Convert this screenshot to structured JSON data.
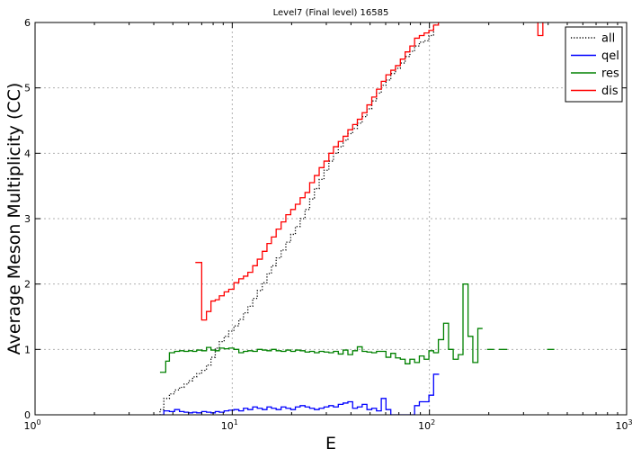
{
  "chart_data": {
    "type": "line",
    "title": "Level7 (Final level) 16585",
    "xlabel": "E",
    "ylabel": "Average Meson Multiplicity (CC)",
    "xscale": "log",
    "xlim": [
      1,
      1000
    ],
    "ylim": [
      0,
      6
    ],
    "xticks": [
      {
        "value": 1,
        "label": "10",
        "exp": "0"
      },
      {
        "value": 10,
        "label": "10",
        "exp": "1"
      },
      {
        "value": 100,
        "label": "10",
        "exp": "2"
      },
      {
        "value": 1000,
        "label": "10",
        "exp": "3"
      }
    ],
    "yticks": [
      {
        "value": 0,
        "label": "0"
      },
      {
        "value": 1,
        "label": "1"
      },
      {
        "value": 2,
        "label": "2"
      },
      {
        "value": 3,
        "label": "3"
      },
      {
        "value": 4,
        "label": "4"
      },
      {
        "value": 5,
        "label": "5"
      },
      {
        "value": 6,
        "label": "6"
      }
    ],
    "grid": true,
    "legend_position": "top-right",
    "series": [
      {
        "name": "all",
        "color": "#000000",
        "style": "dotted",
        "steps": [
          [
            4.0,
            0.0
          ],
          [
            4.3,
            0.08
          ],
          [
            4.5,
            0.25
          ],
          [
            4.8,
            0.32
          ],
          [
            5.1,
            0.38
          ],
          [
            5.4,
            0.42
          ],
          [
            5.7,
            0.47
          ],
          [
            6.0,
            0.52
          ],
          [
            6.3,
            0.58
          ],
          [
            6.6,
            0.63
          ],
          [
            7.0,
            0.68
          ],
          [
            7.4,
            0.76
          ],
          [
            7.8,
            0.88
          ],
          [
            8.2,
            1.02
          ],
          [
            8.6,
            1.12
          ],
          [
            9.1,
            1.2
          ],
          [
            9.6,
            1.28
          ],
          [
            10.2,
            1.36
          ],
          [
            10.8,
            1.46
          ],
          [
            11.4,
            1.56
          ],
          [
            12.0,
            1.66
          ],
          [
            12.7,
            1.78
          ],
          [
            13.4,
            1.9
          ],
          [
            14.2,
            2.02
          ],
          [
            15.0,
            2.16
          ],
          [
            15.8,
            2.28
          ],
          [
            16.7,
            2.4
          ],
          [
            17.7,
            2.52
          ],
          [
            18.7,
            2.64
          ],
          [
            19.8,
            2.76
          ],
          [
            20.9,
            2.88
          ],
          [
            22.1,
            3.0
          ],
          [
            23.4,
            3.14
          ],
          [
            24.7,
            3.3
          ],
          [
            26.1,
            3.46
          ],
          [
            27.6,
            3.6
          ],
          [
            29.2,
            3.74
          ],
          [
            30.9,
            3.88
          ],
          [
            32.6,
            4.0
          ],
          [
            34.5,
            4.1
          ],
          [
            36.5,
            4.2
          ],
          [
            38.6,
            4.3
          ],
          [
            40.8,
            4.38
          ],
          [
            43.1,
            4.46
          ],
          [
            45.6,
            4.56
          ],
          [
            48.2,
            4.68
          ],
          [
            51.0,
            4.8
          ],
          [
            53.9,
            4.92
          ],
          [
            57.0,
            5.04
          ],
          [
            60.2,
            5.12
          ],
          [
            63.7,
            5.22
          ],
          [
            67.3,
            5.3
          ],
          [
            71.2,
            5.38
          ],
          [
            75.3,
            5.48
          ],
          [
            79.6,
            5.56
          ],
          [
            84.1,
            5.64
          ],
          [
            88.9,
            5.7
          ],
          [
            94.0,
            5.72
          ],
          [
            99.4,
            5.8
          ],
          [
            105,
            5.96
          ],
          [
            111,
            6.0
          ]
        ],
        "end": 112
      },
      {
        "name": "qel",
        "color": "#0000ff",
        "style": "solid",
        "steps": [
          [
            4.3,
            0.0
          ],
          [
            4.5,
            0.06
          ],
          [
            4.8,
            0.05
          ],
          [
            5.1,
            0.08
          ],
          [
            5.4,
            0.05
          ],
          [
            5.7,
            0.04
          ],
          [
            6.0,
            0.03
          ],
          [
            6.3,
            0.04
          ],
          [
            6.6,
            0.03
          ],
          [
            7.0,
            0.05
          ],
          [
            7.4,
            0.04
          ],
          [
            7.8,
            0.03
          ],
          [
            8.2,
            0.05
          ],
          [
            8.6,
            0.04
          ],
          [
            9.1,
            0.06
          ],
          [
            9.6,
            0.07
          ],
          [
            10.2,
            0.08
          ],
          [
            10.8,
            0.06
          ],
          [
            11.4,
            0.1
          ],
          [
            12.0,
            0.08
          ],
          [
            12.7,
            0.12
          ],
          [
            13.4,
            0.1
          ],
          [
            14.2,
            0.08
          ],
          [
            15.0,
            0.12
          ],
          [
            15.8,
            0.1
          ],
          [
            16.7,
            0.08
          ],
          [
            17.7,
            0.12
          ],
          [
            18.7,
            0.1
          ],
          [
            19.8,
            0.08
          ],
          [
            20.9,
            0.12
          ],
          [
            22.1,
            0.14
          ],
          [
            23.4,
            0.12
          ],
          [
            24.7,
            0.1
          ],
          [
            26.1,
            0.08
          ],
          [
            27.6,
            0.1
          ],
          [
            29.2,
            0.12
          ],
          [
            30.9,
            0.14
          ],
          [
            32.6,
            0.12
          ],
          [
            34.5,
            0.16
          ],
          [
            36.5,
            0.18
          ],
          [
            38.6,
            0.2
          ],
          [
            40.8,
            0.1
          ],
          [
            43.1,
            0.12
          ],
          [
            45.6,
            0.16
          ],
          [
            48.2,
            0.08
          ],
          [
            51.0,
            0.1
          ],
          [
            53.9,
            0.06
          ],
          [
            57.0,
            0.25
          ],
          [
            60.2,
            0.08
          ],
          [
            63.7,
            0.0
          ],
          [
            84.1,
            0.14
          ],
          [
            88.9,
            0.2
          ],
          [
            94.0,
            0.2
          ],
          [
            99.4,
            0.3
          ],
          [
            105,
            0.62
          ]
        ],
        "end": 112
      },
      {
        "name": "res",
        "color": "#008000",
        "style": "solid",
        "steps": [
          [
            4.3,
            0.65
          ],
          [
            4.6,
            0.82
          ],
          [
            4.8,
            0.95
          ],
          [
            5.1,
            0.97
          ],
          [
            5.4,
            0.98
          ],
          [
            5.7,
            0.97
          ],
          [
            6.0,
            0.98
          ],
          [
            6.3,
            0.97
          ],
          [
            6.6,
            0.99
          ],
          [
            7.0,
            0.98
          ],
          [
            7.4,
            1.03
          ],
          [
            7.8,
            0.99
          ],
          [
            8.2,
            0.98
          ],
          [
            8.6,
            1.02
          ],
          [
            9.1,
            1.01
          ],
          [
            9.6,
            1.02
          ],
          [
            10.2,
            1.0
          ],
          [
            10.8,
            0.95
          ],
          [
            11.4,
            0.97
          ],
          [
            12.0,
            0.98
          ],
          [
            12.7,
            0.97
          ],
          [
            13.4,
            1.0
          ],
          [
            14.2,
            0.99
          ],
          [
            15.0,
            0.98
          ],
          [
            15.8,
            1.0
          ],
          [
            16.7,
            0.98
          ],
          [
            17.7,
            0.97
          ],
          [
            18.7,
            0.99
          ],
          [
            19.8,
            0.97
          ],
          [
            20.9,
            0.99
          ],
          [
            22.1,
            0.98
          ],
          [
            23.4,
            0.96
          ],
          [
            24.7,
            0.97
          ],
          [
            26.1,
            0.95
          ],
          [
            27.6,
            0.97
          ],
          [
            29.2,
            0.96
          ],
          [
            30.9,
            0.95
          ],
          [
            32.6,
            0.97
          ],
          [
            34.5,
            0.93
          ],
          [
            36.5,
            0.99
          ],
          [
            38.6,
            0.92
          ],
          [
            40.8,
            0.98
          ],
          [
            43.1,
            1.04
          ],
          [
            45.6,
            0.97
          ],
          [
            48.2,
            0.96
          ],
          [
            51.0,
            0.95
          ],
          [
            53.9,
            0.97
          ],
          [
            57.0,
            0.97
          ],
          [
            60.2,
            0.88
          ],
          [
            63.7,
            0.94
          ],
          [
            67.3,
            0.87
          ],
          [
            71.2,
            0.85
          ],
          [
            75.3,
            0.78
          ],
          [
            79.6,
            0.85
          ],
          [
            84.1,
            0.8
          ],
          [
            88.9,
            0.9
          ],
          [
            94.0,
            0.85
          ],
          [
            99.4,
            0.98
          ],
          [
            105,
            0.95
          ],
          [
            111,
            1.15
          ],
          [
            118,
            1.4
          ],
          [
            125,
            1.0
          ],
          [
            132,
            0.85
          ],
          [
            140,
            0.92
          ],
          [
            148,
            2.0
          ],
          [
            157,
            1.2
          ],
          [
            166,
            0.8
          ],
          [
            176,
            1.32
          ]
        ],
        "end": 186,
        "segments": [
          [
            [
              196,
              1.0
            ],
            [
              213,
              1.0
            ]
          ],
          [
            [
              225,
              1.0
            ],
            [
              248,
              1.0
            ]
          ],
          [
            [
              395,
              1.0
            ],
            [
              430,
              1.0
            ]
          ]
        ]
      },
      {
        "name": "dis",
        "color": "#ff0000",
        "style": "solid",
        "steps": [
          [
            6.5,
            2.33
          ],
          [
            7.0,
            1.45
          ],
          [
            7.4,
            1.58
          ],
          [
            7.8,
            1.74
          ],
          [
            8.2,
            1.76
          ],
          [
            8.6,
            1.82
          ],
          [
            9.1,
            1.88
          ],
          [
            9.6,
            1.92
          ],
          [
            10.2,
            2.02
          ],
          [
            10.8,
            2.08
          ],
          [
            11.4,
            2.12
          ],
          [
            12.0,
            2.18
          ],
          [
            12.7,
            2.28
          ],
          [
            13.4,
            2.38
          ],
          [
            14.2,
            2.5
          ],
          [
            15.0,
            2.62
          ],
          [
            15.8,
            2.72
          ],
          [
            16.7,
            2.84
          ],
          [
            17.7,
            2.95
          ],
          [
            18.7,
            3.06
          ],
          [
            19.8,
            3.14
          ],
          [
            20.9,
            3.22
          ],
          [
            22.1,
            3.32
          ],
          [
            23.4,
            3.4
          ],
          [
            24.7,
            3.55
          ],
          [
            26.1,
            3.66
          ],
          [
            27.6,
            3.78
          ],
          [
            29.2,
            3.88
          ],
          [
            30.9,
            4.0
          ],
          [
            32.6,
            4.1
          ],
          [
            34.5,
            4.18
          ],
          [
            36.5,
            4.26
          ],
          [
            38.6,
            4.36
          ],
          [
            40.8,
            4.44
          ],
          [
            43.1,
            4.52
          ],
          [
            45.6,
            4.62
          ],
          [
            48.2,
            4.74
          ],
          [
            51.0,
            4.86
          ],
          [
            53.9,
            4.98
          ],
          [
            57.0,
            5.1
          ],
          [
            60.2,
            5.2
          ],
          [
            63.7,
            5.27
          ],
          [
            67.3,
            5.34
          ],
          [
            71.2,
            5.44
          ],
          [
            75.3,
            5.55
          ],
          [
            79.6,
            5.64
          ],
          [
            84.1,
            5.76
          ],
          [
            88.9,
            5.8
          ],
          [
            94.0,
            5.84
          ],
          [
            99.4,
            5.88
          ],
          [
            105,
            5.96
          ],
          [
            111,
            6.0
          ]
        ],
        "end": 112,
        "segments": [
          [
            [
              355,
              6.0
            ],
            [
              355,
              5.8
            ],
            [
              376,
              5.8
            ],
            [
              376,
              6.0
            ]
          ]
        ]
      }
    ]
  }
}
